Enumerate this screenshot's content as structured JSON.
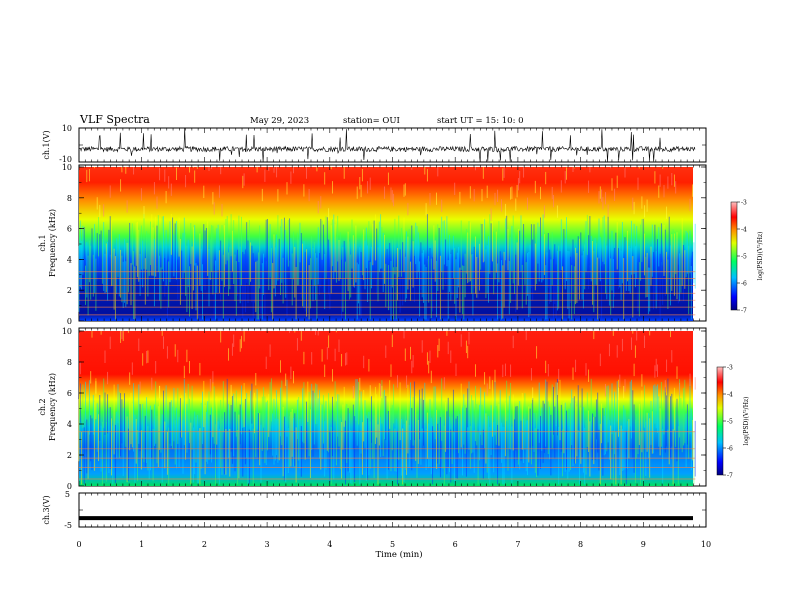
{
  "header": {
    "title": "VLF Spectra",
    "date": "May 29, 2023",
    "station": "station= OUI",
    "start": "start  UT =   15: 10: 0"
  },
  "chart_data": [
    {
      "type": "line",
      "id": "ch1-waveform",
      "ylabel": "ch.1(V)",
      "yticks": [
        "10",
        "-10"
      ],
      "ylim": [
        -10,
        10
      ],
      "xlim": [
        0,
        10
      ],
      "description_values": "dense noisy waveform, baseline about -2 V with spikes to +/-10 V"
    },
    {
      "type": "heatmap",
      "id": "ch1-spectrogram",
      "ylabel": "ch.1\nFrequency (kHz)",
      "ylabel_line1": "ch.1",
      "ylabel_line2": "Frequency (kHz)",
      "yticks": [
        "0",
        "2",
        "4",
        "6",
        "8",
        "10"
      ],
      "ylim": [
        0,
        10
      ],
      "xlim": [
        0,
        9.83
      ],
      "colorbar": {
        "label": "log(PSD)(V²/Hz)",
        "ticks": [
          "-3",
          "-4",
          "-5",
          "-6",
          "-7"
        ],
        "range": [
          -7,
          -3
        ]
      },
      "low_band_top_khz": 4.5,
      "harmonic_lines_khz": [
        0.4,
        0.9,
        1.35,
        1.8,
        2.3,
        2.75,
        3.2
      ]
    },
    {
      "type": "heatmap",
      "id": "ch2-spectrogram",
      "ylabel_line1": "ch.2",
      "ylabel_line2": "Frequency (kHz)",
      "yticks": [
        "0",
        "2",
        "4",
        "6",
        "8",
        "10"
      ],
      "ylim": [
        0,
        10
      ],
      "xlim": [
        0,
        9.83
      ],
      "colorbar": {
        "label": "log(PSD)(V²/Hz)",
        "ticks": [
          "-3",
          "-4",
          "-5",
          "-6",
          "-7"
        ],
        "range": [
          -7,
          -3
        ]
      },
      "low_band_top_khz": 4.5,
      "harmonic_lines_khz": [
        0.45,
        1.2,
        1.8,
        2.4,
        3.5
      ]
    },
    {
      "type": "line",
      "id": "ch3-waveform",
      "ylabel": "ch.3(V)",
      "yticks": [
        "5",
        "-5"
      ],
      "ylim": [
        -5,
        5
      ],
      "xlim": [
        0,
        10
      ],
      "baseline_value": -2.4
    }
  ],
  "xaxis": {
    "label": "Time  (min)",
    "ticks": [
      "0",
      "1",
      "2",
      "3",
      "4",
      "5",
      "6",
      "7",
      "8",
      "9",
      "10"
    ],
    "range": [
      0,
      10
    ]
  },
  "colors": {
    "colormap": [
      "#000080",
      "#0000ff",
      "#00c0ff",
      "#00ff80",
      "#ffff00",
      "#ff8000",
      "#ff0000",
      "#ff8080"
    ]
  }
}
